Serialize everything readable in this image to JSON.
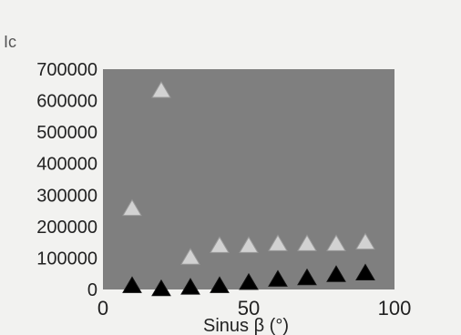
{
  "chart_data": {
    "type": "scatter",
    "title": "",
    "top_left_label": "Ic",
    "xlabel": "Sinus β (°)",
    "ylabel": "",
    "xlim": [
      0,
      100
    ],
    "ylim": [
      0,
      700000
    ],
    "x_ticks": [
      "0",
      "50",
      "100"
    ],
    "y_ticks": [
      "0",
      "100000",
      "200000",
      "300000",
      "400000",
      "500000",
      "600000",
      "700000"
    ],
    "plot_background": "#7f7f7f",
    "grid": false,
    "legend": "none",
    "series": [
      {
        "color": "#d2d2d2",
        "marker": "triangle",
        "points": [
          {
            "x": 10,
            "y": 255000
          },
          {
            "x": 20,
            "y": 630000
          },
          {
            "x": 30,
            "y": 100000
          },
          {
            "x": 40,
            "y": 137000
          },
          {
            "x": 50,
            "y": 137000
          },
          {
            "x": 60,
            "y": 143000
          },
          {
            "x": 70,
            "y": 143000
          },
          {
            "x": 80,
            "y": 143000
          },
          {
            "x": 90,
            "y": 148000
          }
        ]
      },
      {
        "color": "#000000",
        "marker": "triangle",
        "points": [
          {
            "x": 10,
            "y": 10000
          },
          {
            "x": 20,
            "y": 0
          },
          {
            "x": 30,
            "y": 5000
          },
          {
            "x": 40,
            "y": 10000
          },
          {
            "x": 50,
            "y": 20000
          },
          {
            "x": 60,
            "y": 30000
          },
          {
            "x": 70,
            "y": 35000
          },
          {
            "x": 80,
            "y": 45000
          },
          {
            "x": 90,
            "y": 50000
          }
        ]
      }
    ]
  }
}
